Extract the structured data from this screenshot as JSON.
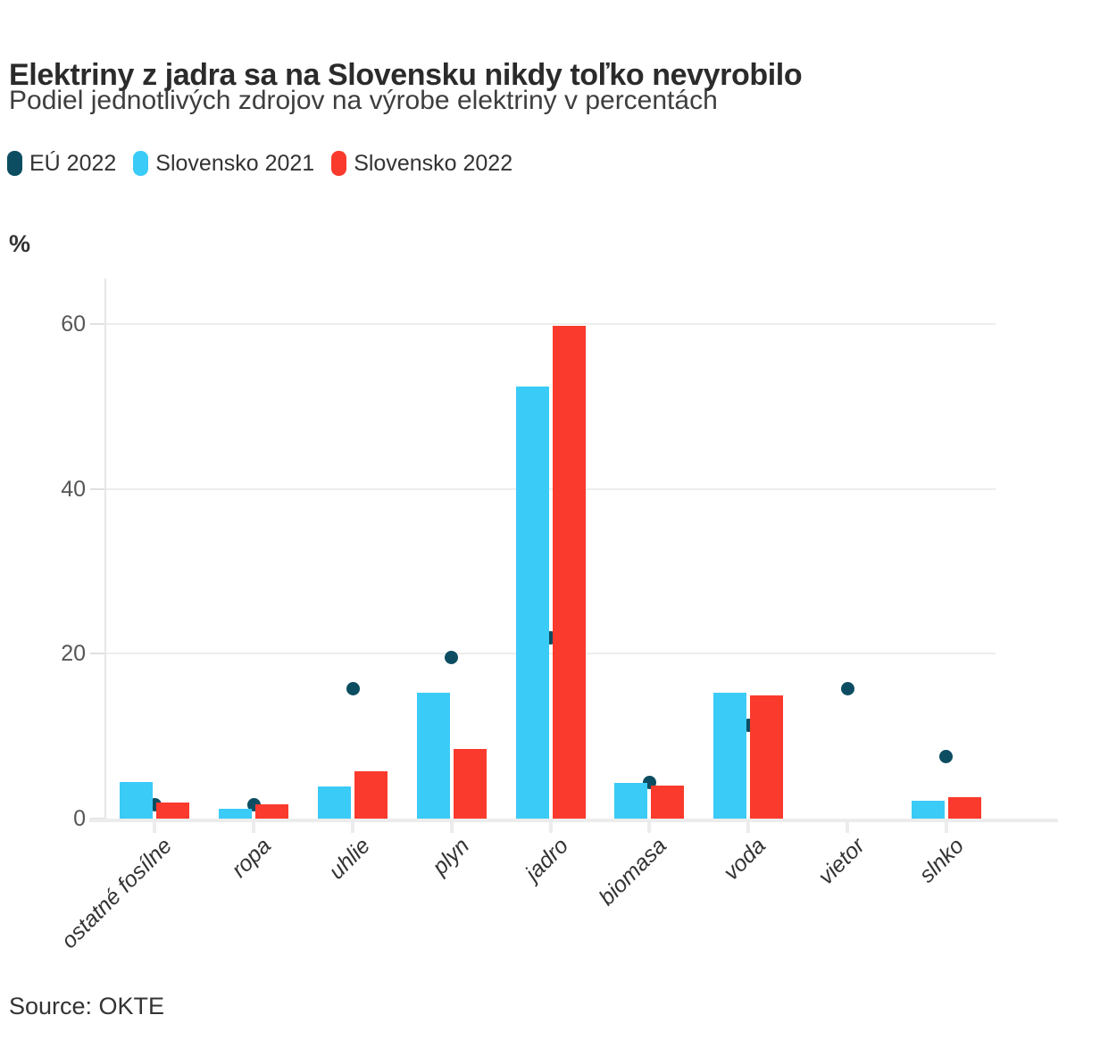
{
  "header": {
    "title": "Elektriny z jadra sa na Slovensku nikdy toľko nevyrobilo",
    "subtitle": "Podiel jednotlivých zdrojov na výrobe elektriny v percentách"
  },
  "source": "Source: OKTE",
  "chart_data": {
    "type": "bar",
    "title": "Elektriny z jadra sa na Slovensku nikdy toľko nevyrobilo",
    "subtitle": "Podiel jednotlivých zdrojov na výrobe elektriny v percentách",
    "categories": [
      "ostatné fosílne",
      "ropa",
      "uhlie",
      "plyn",
      "jadro",
      "biomasa",
      "voda",
      "vietor",
      "slnko"
    ],
    "series": [
      {
        "name": "EÚ 2022",
        "render": "scatter",
        "color": "#0D4D62",
        "values": [
          1.7,
          1.7,
          15.8,
          19.6,
          21.9,
          4.4,
          11.3,
          15.8,
          7.5
        ]
      },
      {
        "name": "Slovensko 2021",
        "render": "bar",
        "color": "#3BCBF7",
        "values": [
          4.4,
          1.2,
          3.9,
          15.3,
          52.4,
          4.3,
          15.3,
          null,
          2.2
        ]
      },
      {
        "name": "Slovensko 2022",
        "render": "bar",
        "color": "#FA3A2C",
        "values": [
          2.0,
          1.7,
          5.7,
          8.5,
          59.8,
          4.0,
          14.9,
          null,
          2.6
        ]
      }
    ],
    "xlabel": "",
    "ylabel": "%",
    "yticks": [
      0,
      20,
      40,
      60
    ],
    "ylim": [
      0,
      65
    ],
    "grid": true,
    "legend_position": "top"
  }
}
